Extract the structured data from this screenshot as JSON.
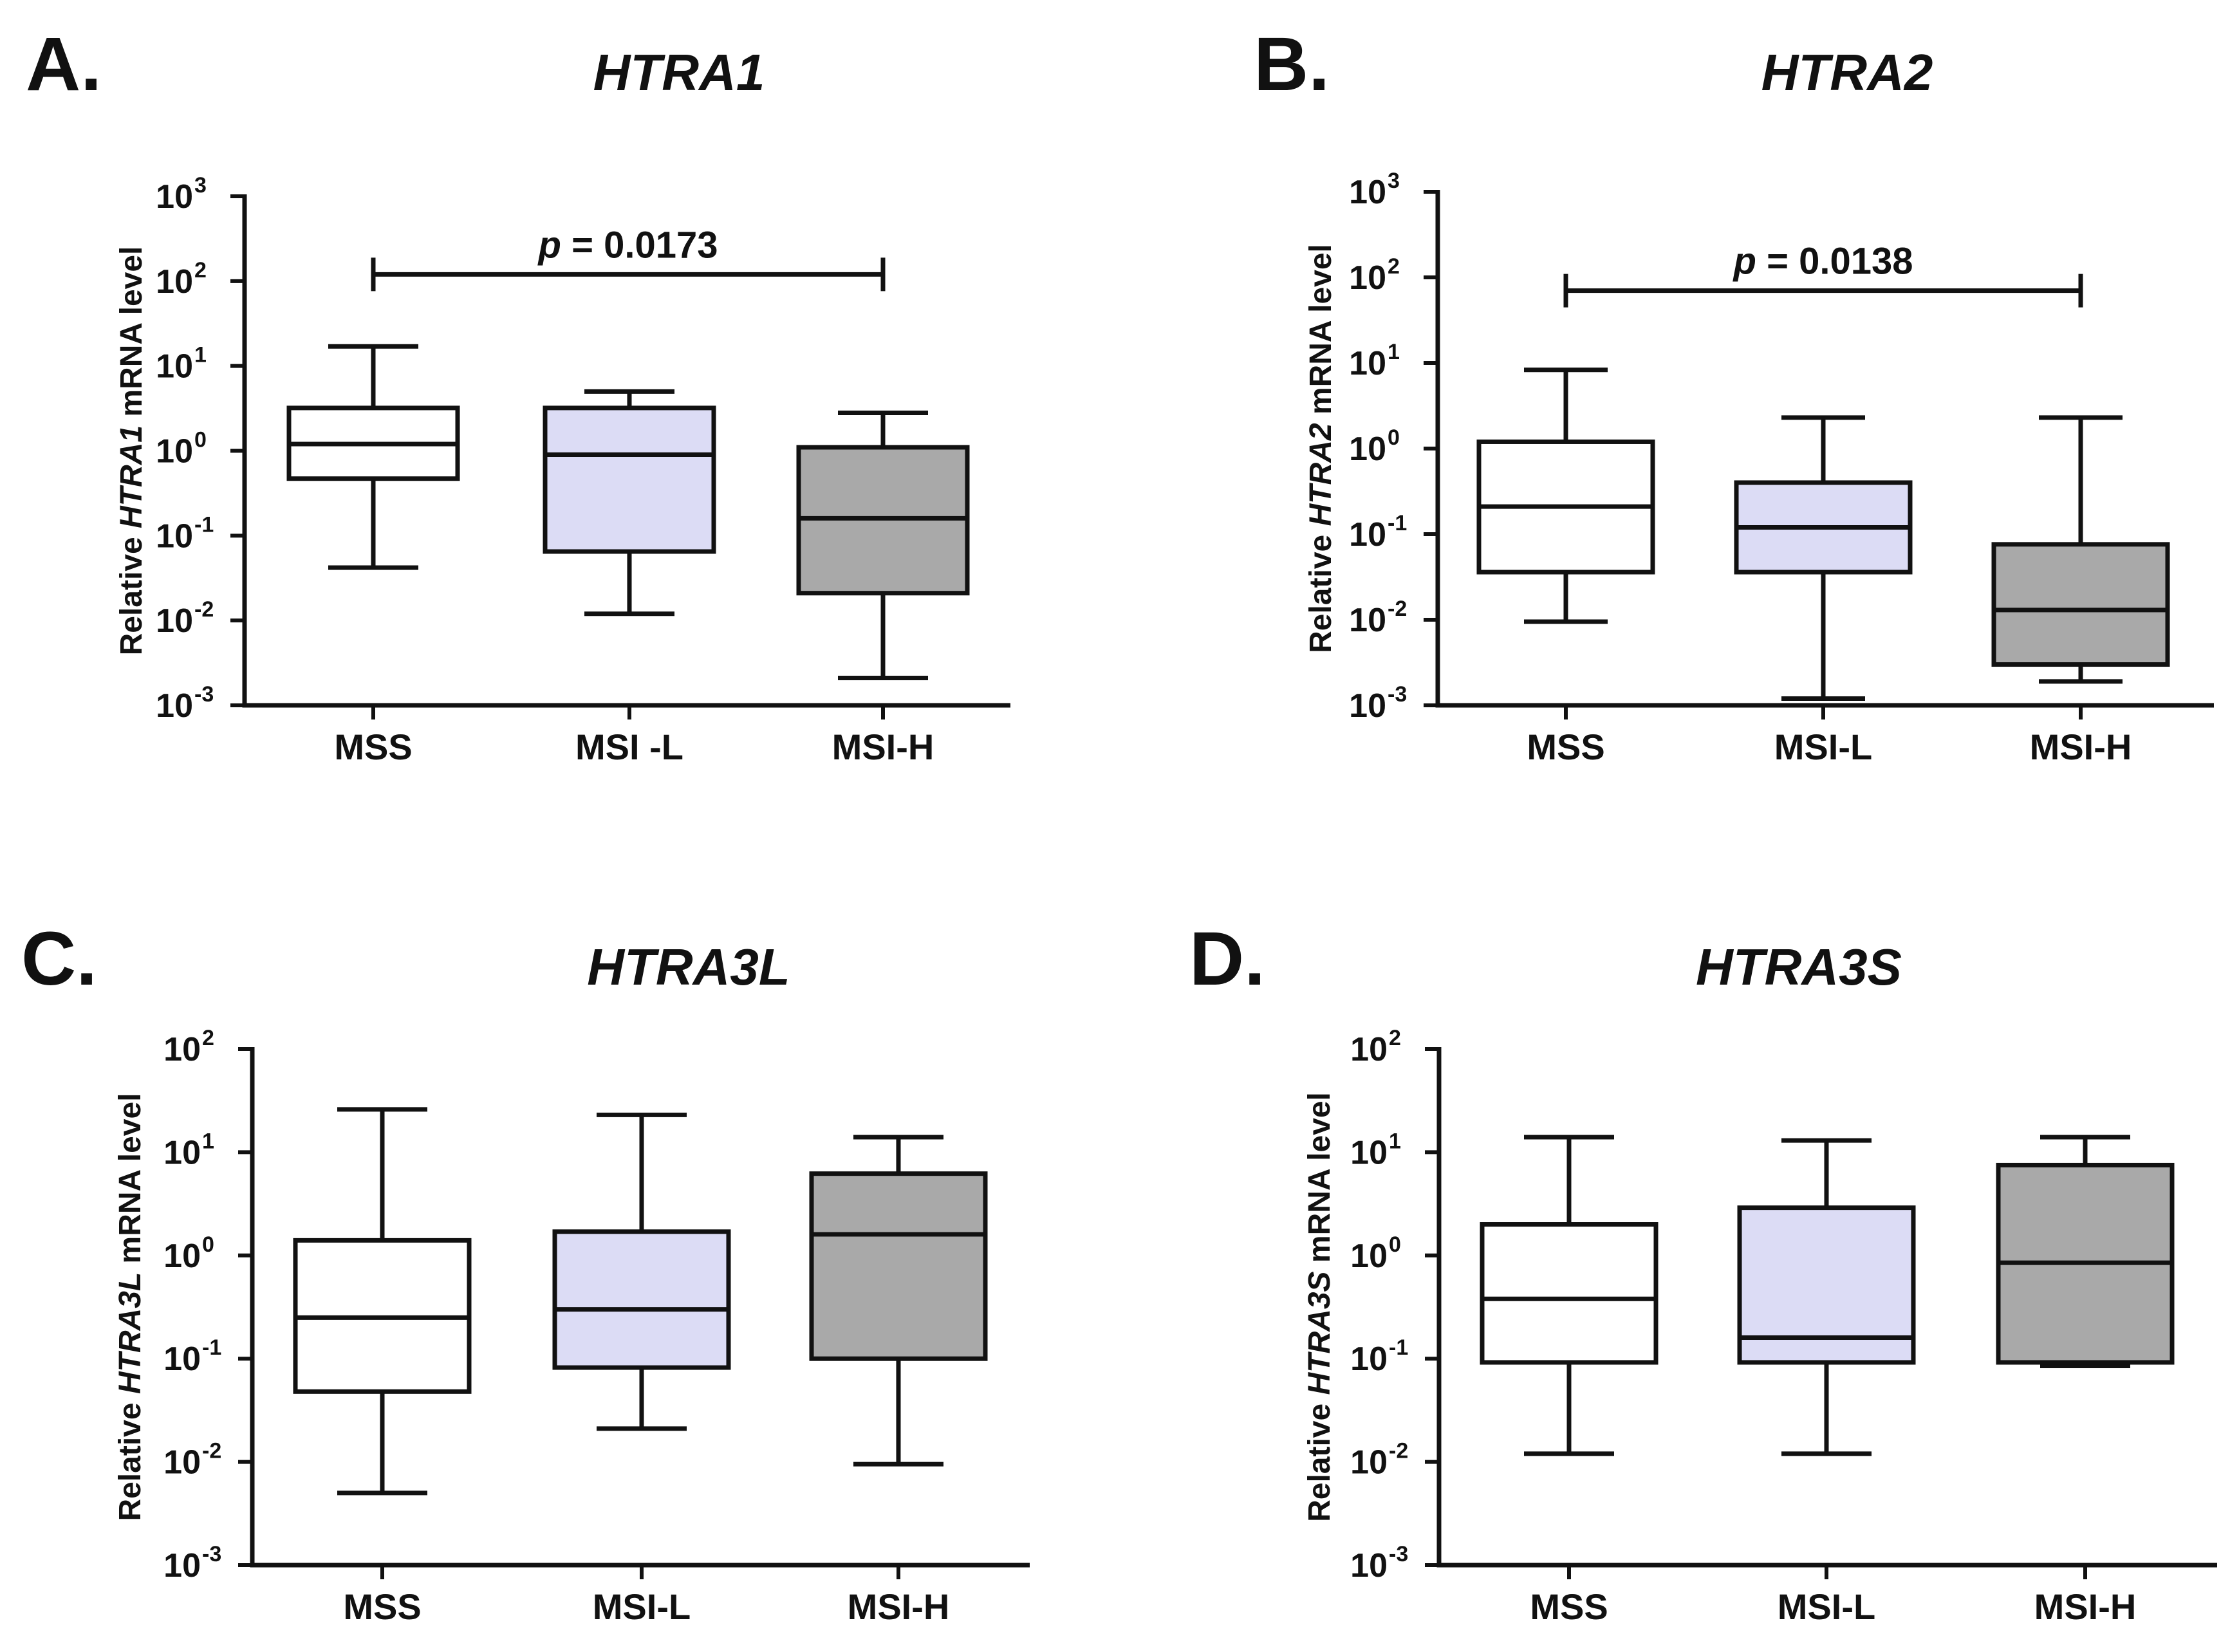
{
  "chart_data": [
    {
      "type": "box",
      "panel_letter": "A.",
      "title": "HTRA1",
      "ylabel": {
        "prefix": "Relative ",
        "gene": "HTRA1",
        "suffix": " mRNA level"
      },
      "yscale": "log",
      "ylim": [
        0.001,
        1000
      ],
      "yticks": [
        {
          "base": "10",
          "exp": "3"
        },
        {
          "base": "10",
          "exp": "2"
        },
        {
          "base": "10",
          "exp": "1"
        },
        {
          "base": "10",
          "exp": "0"
        },
        {
          "base": "10",
          "exp": "-1"
        },
        {
          "base": "10",
          "exp": "-2"
        },
        {
          "base": "10",
          "exp": "-3"
        }
      ],
      "categories": [
        "MSS",
        "MSI -L",
        "MSI-H"
      ],
      "boxes": [
        {
          "whisker_low": 0.042,
          "q1": 0.47,
          "median": 1.2,
          "q3": 3.2,
          "whisker_high": 17,
          "fill": "#ffffff"
        },
        {
          "whisker_low": 0.012,
          "q1": 0.065,
          "median": 0.9,
          "q3": 3.2,
          "whisker_high": 5.0,
          "fill": "#dcdcf5"
        },
        {
          "whisker_low": 0.0021,
          "q1": 0.021,
          "median": 0.16,
          "q3": 1.1,
          "whisker_high": 2.8,
          "fill": "#a9a9a9"
        }
      ],
      "significance": {
        "from": "MSS",
        "to": "MSI-H",
        "y": 120,
        "p_symbol": "p",
        "p_text": " = 0.0173"
      }
    },
    {
      "type": "box",
      "panel_letter": "B.",
      "title": "HTRA2",
      "ylabel": {
        "prefix": "Relative ",
        "gene": "HTRA2",
        "suffix": " mRNA level"
      },
      "yscale": "log",
      "ylim": [
        0.001,
        1000
      ],
      "yticks": [
        {
          "base": "10",
          "exp": "3"
        },
        {
          "base": "10",
          "exp": "2"
        },
        {
          "base": "10",
          "exp": "1"
        },
        {
          "base": "10",
          "exp": "0"
        },
        {
          "base": "10",
          "exp": "-1"
        },
        {
          "base": "10",
          "exp": "-2"
        },
        {
          "base": "10",
          "exp": "-3"
        }
      ],
      "categories": [
        "MSS",
        "MSI-L",
        "MSI-H"
      ],
      "boxes": [
        {
          "whisker_low": 0.0095,
          "q1": 0.036,
          "median": 0.21,
          "q3": 1.2,
          "whisker_high": 8.3,
          "fill": "#ffffff"
        },
        {
          "whisker_low": 0.0012,
          "q1": 0.036,
          "median": 0.12,
          "q3": 0.4,
          "whisker_high": 2.3,
          "fill": "#dcdcf5"
        },
        {
          "whisker_low": 0.0019,
          "q1": 0.003,
          "median": 0.013,
          "q3": 0.076,
          "whisker_high": 2.3,
          "fill": "#a9a9a9"
        }
      ],
      "significance": {
        "from": "MSS",
        "to": "MSI-H",
        "y": 70,
        "p_symbol": "p",
        "p_text": " = 0.0138"
      }
    },
    {
      "type": "box",
      "panel_letter": "C.",
      "title": "HTRA3L",
      "ylabel": {
        "prefix": "Relative ",
        "gene": "HTRA3L",
        "suffix": " mRNA level"
      },
      "yscale": "log",
      "ylim": [
        0.001,
        100
      ],
      "yticks": [
        {
          "base": "10",
          "exp": "2"
        },
        {
          "base": "10",
          "exp": "1"
        },
        {
          "base": "10",
          "exp": "0"
        },
        {
          "base": "10",
          "exp": "-1"
        },
        {
          "base": "10",
          "exp": "-2"
        },
        {
          "base": "10",
          "exp": "-3"
        }
      ],
      "categories": [
        "MSS",
        "MSI-L",
        "MSI-H"
      ],
      "boxes": [
        {
          "whisker_low": 0.005,
          "q1": 0.048,
          "median": 0.25,
          "q3": 1.4,
          "whisker_high": 26,
          "fill": "#ffffff"
        },
        {
          "whisker_low": 0.021,
          "q1": 0.082,
          "median": 0.3,
          "q3": 1.7,
          "whisker_high": 23,
          "fill": "#dcdcf5"
        },
        {
          "whisker_low": 0.0095,
          "q1": 0.1,
          "median": 1.6,
          "q3": 6.2,
          "whisker_high": 14,
          "fill": "#a9a9a9"
        }
      ],
      "significance": null
    },
    {
      "type": "box",
      "panel_letter": "D.",
      "title": "HTRA3S",
      "ylabel": {
        "prefix": "Relative ",
        "gene": "HTRA3S",
        "suffix": " mRNA level"
      },
      "yscale": "log",
      "ylim": [
        0.001,
        100
      ],
      "yticks": [
        {
          "base": "10",
          "exp": "2"
        },
        {
          "base": "10",
          "exp": "1"
        },
        {
          "base": "10",
          "exp": "0"
        },
        {
          "base": "10",
          "exp": "-1"
        },
        {
          "base": "10",
          "exp": "-2"
        },
        {
          "base": "10",
          "exp": "-3"
        }
      ],
      "categories": [
        "MSS",
        "MSI-L",
        "MSI-H"
      ],
      "boxes": [
        {
          "whisker_low": 0.012,
          "q1": 0.092,
          "median": 0.38,
          "q3": 2.0,
          "whisker_high": 14,
          "fill": "#ffffff"
        },
        {
          "whisker_low": 0.012,
          "q1": 0.092,
          "median": 0.16,
          "q3": 2.9,
          "whisker_high": 13,
          "fill": "#dcdcf5"
        },
        {
          "whisker_low": 0.085,
          "q1": 0.092,
          "median": 0.85,
          "q3": 7.5,
          "whisker_high": 14,
          "fill": "#a9a9a9"
        }
      ],
      "significance": null
    }
  ]
}
